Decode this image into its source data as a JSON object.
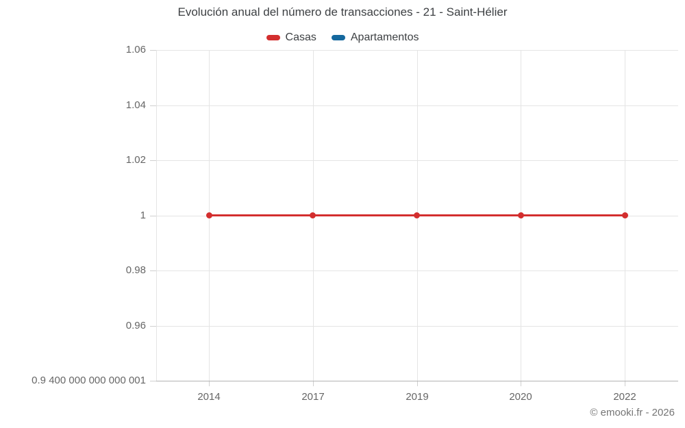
{
  "page": {
    "footer": "© emooki.fr - 2026"
  },
  "colors": {
    "casas": "#d32e2e",
    "apartamentos": "#15689e",
    "gridline": "#e4e4e4",
    "axis_line": "#b3b3b3",
    "tick": "#cfcfcf",
    "axis_text": "#666666",
    "title_text": "#3d4043",
    "footer_text": "#757575"
  },
  "chart_data": {
    "type": "line",
    "title": "Evolución anual del número de transacciones - 21 - Saint-Hélier",
    "categories": [
      "2014",
      "2017",
      "2019",
      "2020",
      "2022"
    ],
    "series": [
      {
        "name": "Casas",
        "color": "#d32e2e",
        "values": [
          1,
          1,
          1,
          1,
          1
        ]
      },
      {
        "name": "Apartamentos",
        "color": "#15689e",
        "values": []
      }
    ],
    "ylim": [
      0.94,
      1.06
    ],
    "yticks": [
      1.06,
      1.04,
      1.02,
      1,
      0.98,
      0.96,
      0.94
    ],
    "ytick_labels": [
      "1.06",
      "1.04",
      "1.02",
      "1",
      "0.98",
      "0.96",
      "0.9 400 000 000 000 001"
    ],
    "grid": true,
    "legend_position": "top",
    "xlabel": "",
    "ylabel": ""
  }
}
